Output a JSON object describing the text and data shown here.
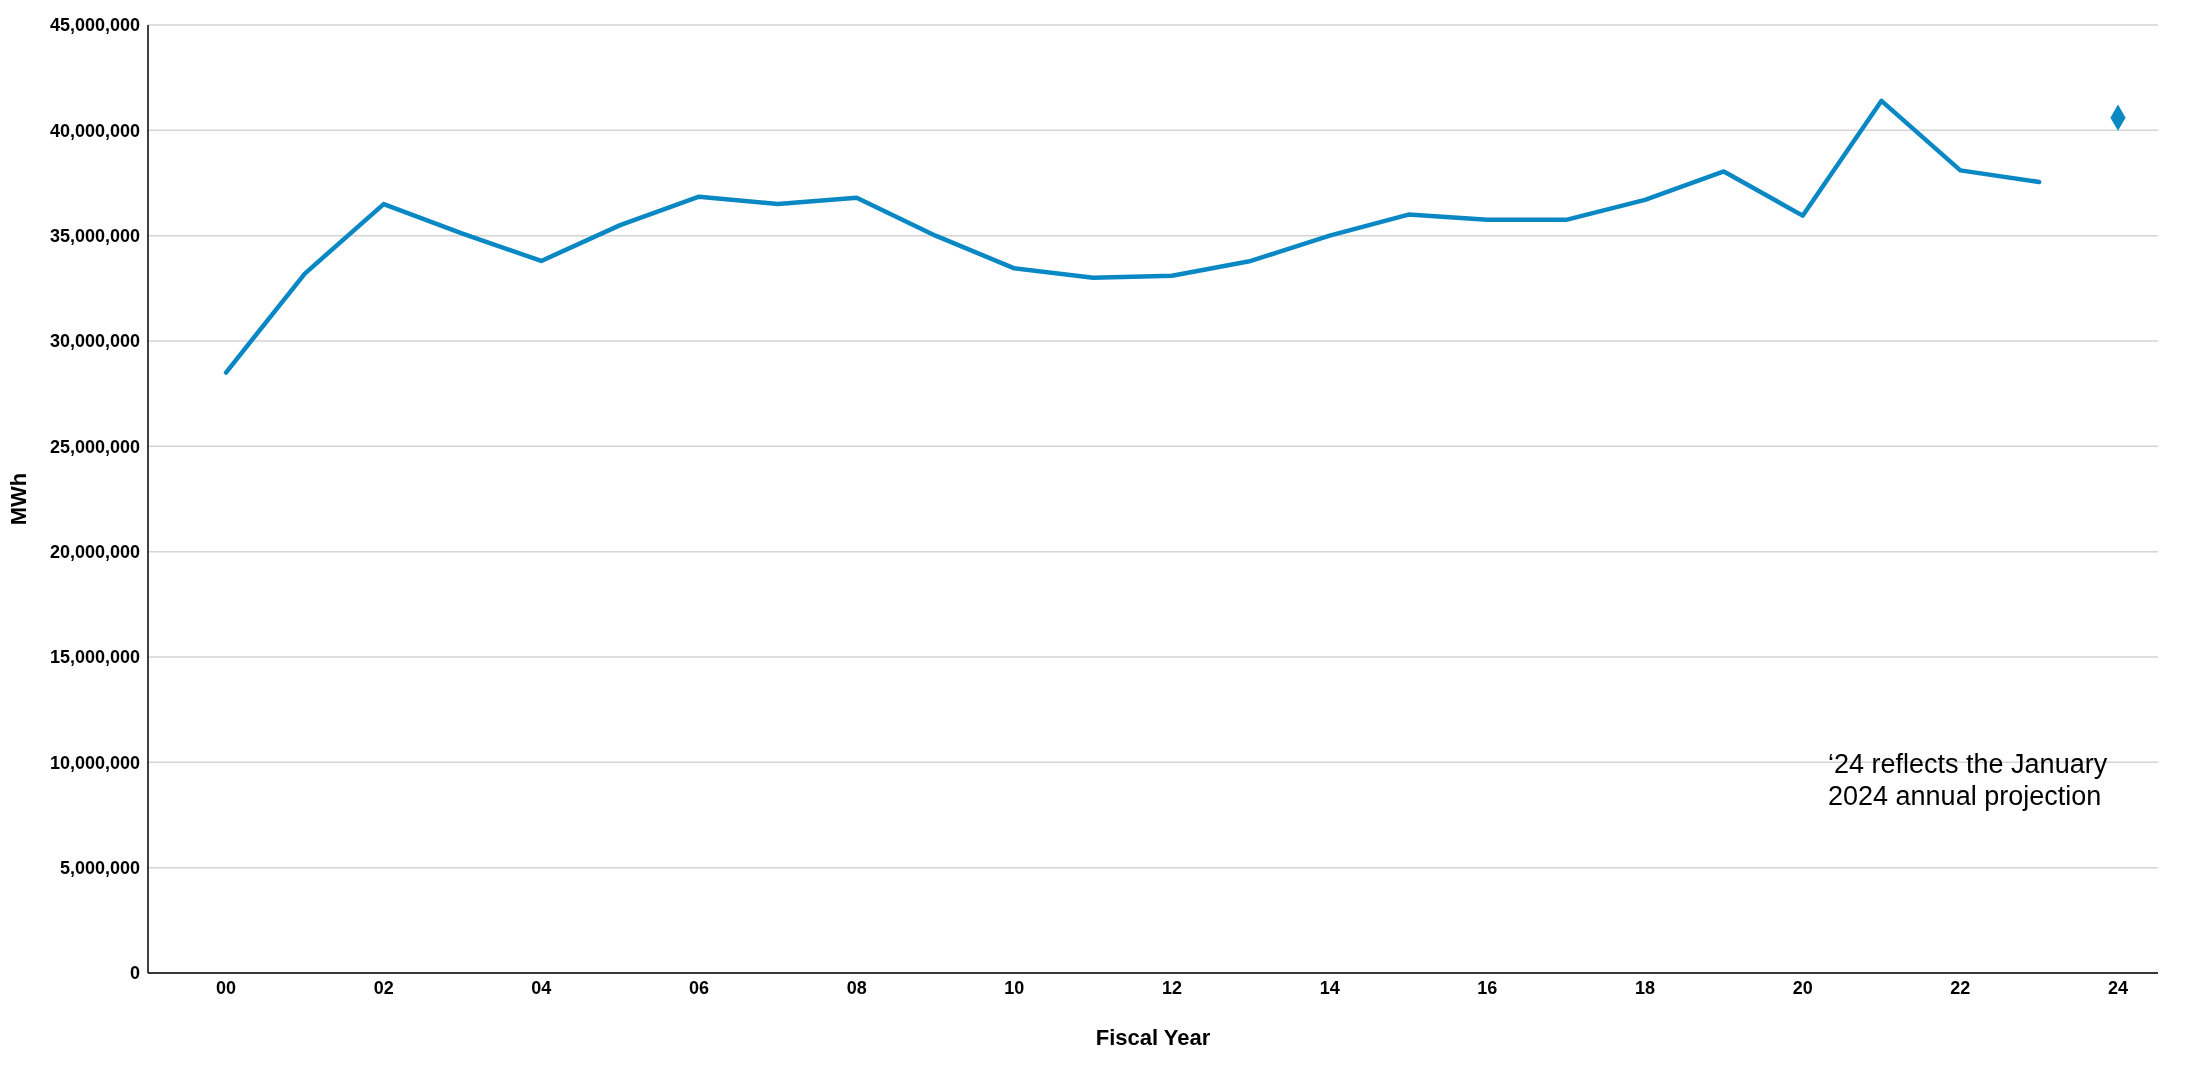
{
  "chart_data": {
    "type": "line",
    "xlabel": "Fiscal Year",
    "ylabel": "MWh",
    "categories": [
      "00",
      null,
      "02",
      null,
      "04",
      null,
      "06",
      null,
      "08",
      null,
      "10",
      null,
      "12",
      null,
      "14",
      null,
      "16",
      null,
      "18",
      null,
      "20",
      null,
      "22",
      null,
      "24"
    ],
    "series": [
      {
        "color": "#0a88c4",
        "marker": "none",
        "values": [
          28500000,
          33200000,
          36500000,
          35100000,
          33800000,
          35500000,
          36850000,
          36500000,
          36800000,
          35000000,
          33450000,
          33000000,
          33100000,
          33800000,
          35000000,
          36000000,
          35750000,
          35750000,
          36700000,
          38050000,
          35950000,
          41400000,
          38100000,
          37550000,
          null
        ]
      },
      {
        "type": "scatter",
        "color": "#0a88c4",
        "marker": "diamond",
        "values": [
          null,
          null,
          null,
          null,
          null,
          null,
          null,
          null,
          null,
          null,
          null,
          null,
          null,
          null,
          null,
          null,
          null,
          null,
          null,
          null,
          null,
          null,
          null,
          null,
          40600000
        ]
      }
    ],
    "ylim": [
      0,
      45000000
    ],
    "yticks": [
      {
        "value": 0,
        "label": "0"
      },
      {
        "value": 5000000,
        "label": "5,000,000"
      },
      {
        "value": 10000000,
        "label": "10,000,000"
      },
      {
        "value": 15000000,
        "label": "15,000,000"
      },
      {
        "value": 20000000,
        "label": "20,000,000"
      },
      {
        "value": 25000000,
        "label": "25,000,000"
      },
      {
        "value": 30000000,
        "label": "30,000,000"
      },
      {
        "value": 35000000,
        "label": "35,000,000"
      },
      {
        "value": 40000000,
        "label": "40,000,000"
      },
      {
        "value": 45000000,
        "label": "45,000,000"
      }
    ],
    "grid": "y",
    "annotations": [
      "‘24 reflects the January 2024 annual projection"
    ]
  }
}
